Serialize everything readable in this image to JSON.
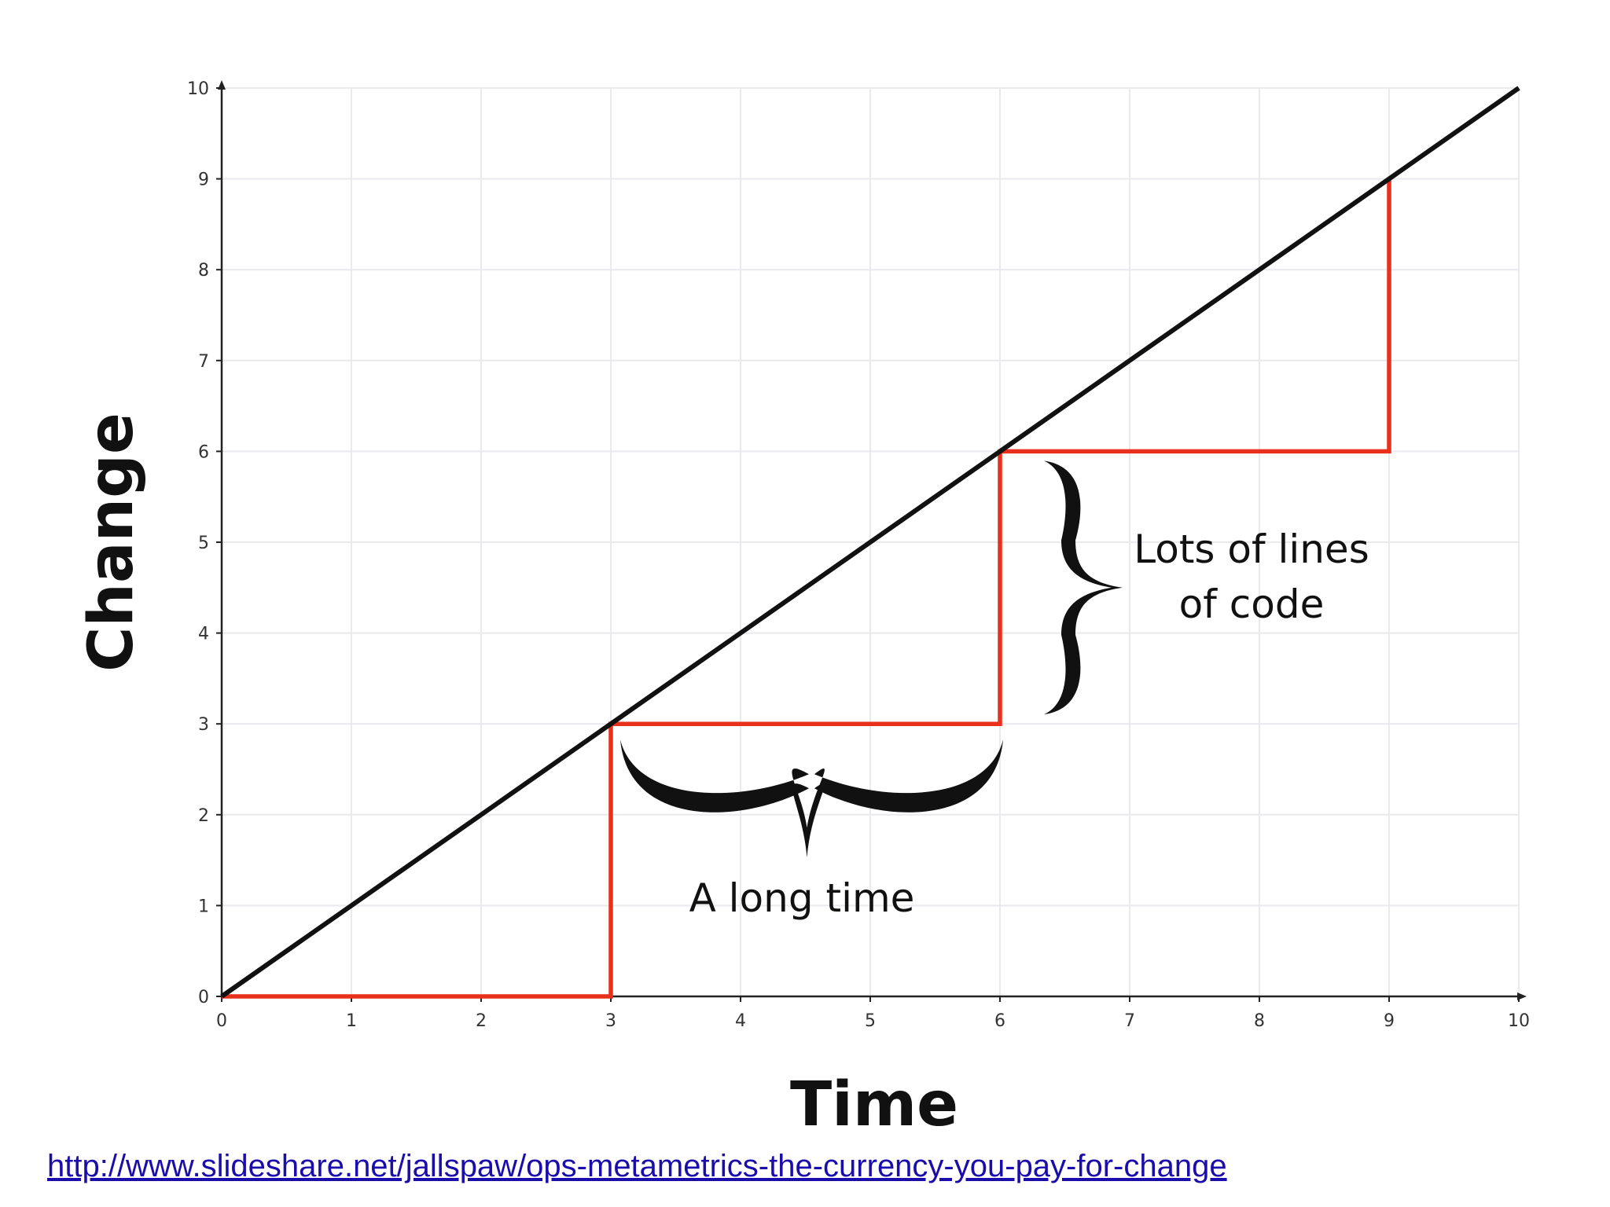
{
  "chart_data": {
    "type": "line",
    "xlabel": "Time",
    "ylabel": "Change",
    "xlim": [
      0,
      10
    ],
    "ylim": [
      0,
      10
    ],
    "x_ticks": [
      0,
      1,
      2,
      3,
      4,
      5,
      6,
      7,
      8,
      9,
      10
    ],
    "y_ticks": [
      0,
      1,
      2,
      3,
      4,
      5,
      6,
      7,
      8,
      9,
      10
    ],
    "grid": true,
    "series": [
      {
        "color": "#111111",
        "x": [
          0,
          10
        ],
        "y": [
          0,
          10
        ]
      },
      {
        "color": "#e8301c",
        "x": [
          0,
          3,
          3,
          6,
          6,
          9,
          9
        ],
        "y": [
          0,
          0,
          3,
          3,
          6,
          6,
          9
        ]
      }
    ],
    "annotations": [
      {
        "text": "A long time",
        "brace": "horizontal",
        "x": [
          3,
          6
        ],
        "y": 3
      },
      {
        "text_lines": [
          "Lots of lines",
          "of code"
        ],
        "brace": "vertical",
        "x": 6,
        "y": [
          3,
          6
        ]
      }
    ]
  },
  "source": {
    "link_text": "http://www.slideshare.net/jallspaw/ops-metametrics-the-currency-you-pay-for-change"
  }
}
